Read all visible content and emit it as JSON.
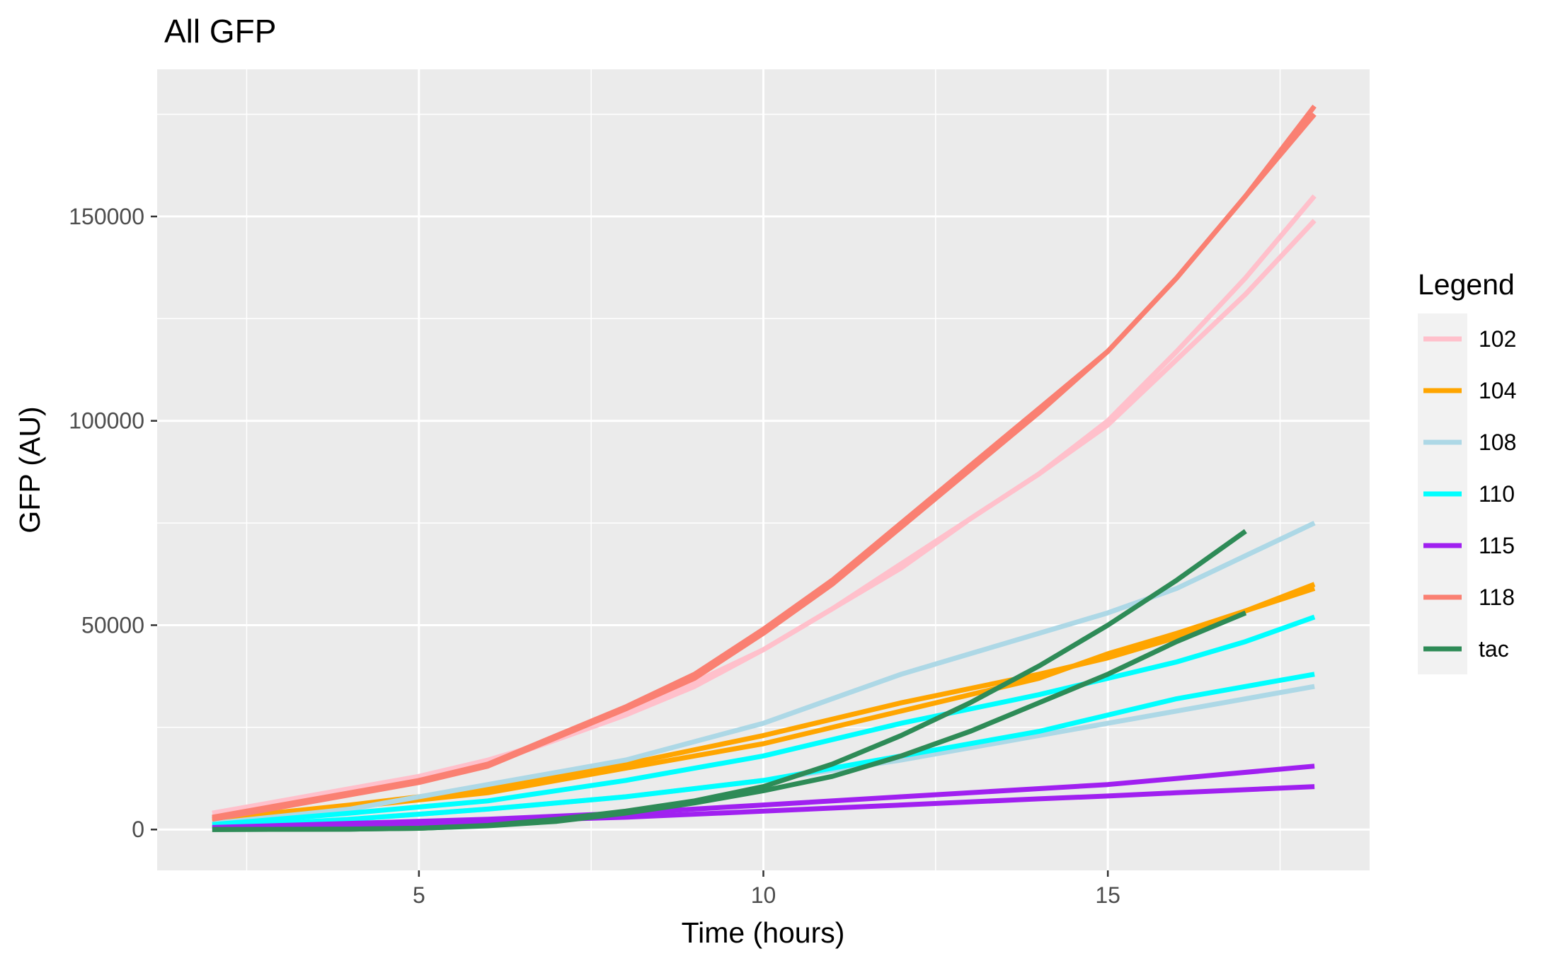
{
  "chart_data": {
    "type": "line",
    "title": "All GFP",
    "xlabel": "Time (hours)",
    "ylabel": "GFP (AU)",
    "xlim": [
      1.2,
      18.8
    ],
    "ylim": [
      -10000,
      186000
    ],
    "x_ticks": [
      5,
      10,
      15
    ],
    "x_tick_labels": [
      "5",
      "10",
      "15"
    ],
    "y_ticks": [
      0,
      50000,
      100000,
      150000
    ],
    "y_tick_labels": [
      "0",
      "50000",
      "100000",
      "150000"
    ],
    "grid": true,
    "background": "#ebebeb",
    "legend": {
      "title": "Legend",
      "position": "right",
      "entries": [
        {
          "label": "102",
          "color": "#ffc0cb"
        },
        {
          "label": "104",
          "color": "#ffa500"
        },
        {
          "label": "108",
          "color": "#add8e6"
        },
        {
          "label": "110",
          "color": "#00ffff"
        },
        {
          "label": "115",
          "color": "#a020f0"
        },
        {
          "label": "118",
          "color": "#fa8072"
        },
        {
          "label": "tac",
          "color": "#2e8b57"
        }
      ]
    },
    "series": [
      {
        "name": "102",
        "color": "#ffc0cb",
        "x": [
          2,
          3,
          4,
          5,
          6,
          7,
          8,
          9,
          10,
          11,
          12,
          13,
          14,
          15,
          16,
          17,
          18
        ],
        "y": [
          4000,
          7000,
          10000,
          13000,
          17000,
          22000,
          29000,
          36000,
          44000,
          54000,
          64000,
          76000,
          87000,
          100000,
          117000,
          135000,
          155000
        ]
      },
      {
        "name": "102",
        "color": "#ffc0cb",
        "x": [
          2,
          3,
          4,
          5,
          6,
          7,
          8,
          9,
          10,
          11,
          12,
          13,
          14,
          15,
          16,
          17,
          18
        ],
        "y": [
          3000,
          6000,
          9000,
          12000,
          16000,
          22000,
          28000,
          35000,
          44000,
          54000,
          65000,
          76000,
          87000,
          99000,
          115000,
          131000,
          149000
        ]
      },
      {
        "name": "104",
        "color": "#ffa500",
        "x": [
          2,
          4,
          6,
          8,
          10,
          12,
          14,
          15,
          16,
          18
        ],
        "y": [
          2500,
          6000,
          10000,
          16000,
          23000,
          31000,
          38000,
          42000,
          47000,
          60000
        ]
      },
      {
        "name": "104",
        "color": "#ffa500",
        "x": [
          2,
          4,
          6,
          8,
          10,
          12,
          14,
          15,
          16,
          18
        ],
        "y": [
          2000,
          5500,
          9000,
          15000,
          21000,
          29000,
          37000,
          43000,
          48000,
          59000
        ]
      },
      {
        "name": "108",
        "color": "#add8e6",
        "x": [
          2,
          4,
          6,
          8,
          10,
          11,
          12,
          13,
          14,
          15,
          16,
          18
        ],
        "y": [
          1500,
          5000,
          11000,
          17000,
          26000,
          32000,
          38000,
          43000,
          48000,
          53000,
          59000,
          75000
        ]
      },
      {
        "name": "108",
        "color": "#add8e6",
        "x": [
          2,
          4,
          6,
          8,
          10,
          12,
          14,
          15,
          16,
          18
        ],
        "y": [
          500,
          2500,
          5000,
          8000,
          12000,
          17000,
          23000,
          26000,
          29000,
          35000
        ]
      },
      {
        "name": "110",
        "color": "#00ffff",
        "x": [
          2,
          4,
          6,
          8,
          10,
          12,
          14,
          15,
          16,
          17,
          18
        ],
        "y": [
          1200,
          4000,
          7000,
          12000,
          18000,
          26000,
          33000,
          37000,
          41000,
          46000,
          52000
        ]
      },
      {
        "name": "110",
        "color": "#00ffff",
        "x": [
          2,
          4,
          6,
          8,
          10,
          12,
          14,
          15,
          16,
          18
        ],
        "y": [
          600,
          2500,
          5000,
          8000,
          12000,
          18000,
          24000,
          28000,
          32000,
          38000
        ]
      },
      {
        "name": "115",
        "color": "#a020f0",
        "x": [
          2,
          4,
          6,
          8,
          10,
          12,
          14,
          15,
          16,
          18
        ],
        "y": [
          500,
          1500,
          2500,
          4000,
          6000,
          8000,
          10000,
          11000,
          12500,
          15500
        ]
      },
      {
        "name": "115",
        "color": "#a020f0",
        "x": [
          2,
          4,
          6,
          8,
          10,
          12,
          14,
          15,
          16,
          18
        ],
        "y": [
          300,
          1000,
          2000,
          3000,
          4500,
          6000,
          7500,
          8200,
          9000,
          10500
        ]
      },
      {
        "name": "118",
        "color": "#fa8072",
        "x": [
          2,
          3,
          4,
          5,
          6,
          7,
          8,
          9,
          10,
          11,
          12,
          13,
          14,
          15,
          16,
          17,
          18
        ],
        "y": [
          3000,
          6000,
          9000,
          12000,
          16000,
          23000,
          30000,
          38000,
          49000,
          61000,
          75000,
          89000,
          103000,
          117000,
          135000,
          155000,
          177000
        ]
      },
      {
        "name": "118",
        "color": "#fa8072",
        "x": [
          2,
          3,
          4,
          5,
          6,
          7,
          8,
          9,
          10,
          11,
          12,
          13,
          14,
          15,
          16,
          17,
          18
        ],
        "y": [
          2500,
          5500,
          8500,
          11500,
          15500,
          22500,
          29500,
          37000,
          48000,
          60000,
          74000,
          88000,
          102000,
          117000,
          135000,
          155000,
          175000
        ]
      },
      {
        "name": "tac",
        "color": "#2e8b57",
        "x": [
          2,
          4,
          5,
          6,
          7,
          8,
          9,
          10,
          11,
          12,
          13,
          14,
          15,
          16,
          17
        ],
        "y": [
          0,
          100,
          300,
          1000,
          2500,
          4500,
          7000,
          10500,
          16000,
          23000,
          31000,
          40000,
          50000,
          61000,
          73000
        ]
      },
      {
        "name": "tac",
        "color": "#2e8b57",
        "x": [
          2,
          4,
          5,
          6,
          7,
          8,
          9,
          10,
          11,
          12,
          13,
          14,
          15,
          16,
          17
        ],
        "y": [
          0,
          100,
          300,
          900,
          2000,
          4000,
          6500,
          9500,
          13000,
          18000,
          24000,
          31000,
          38000,
          46000,
          53000
        ]
      }
    ]
  }
}
